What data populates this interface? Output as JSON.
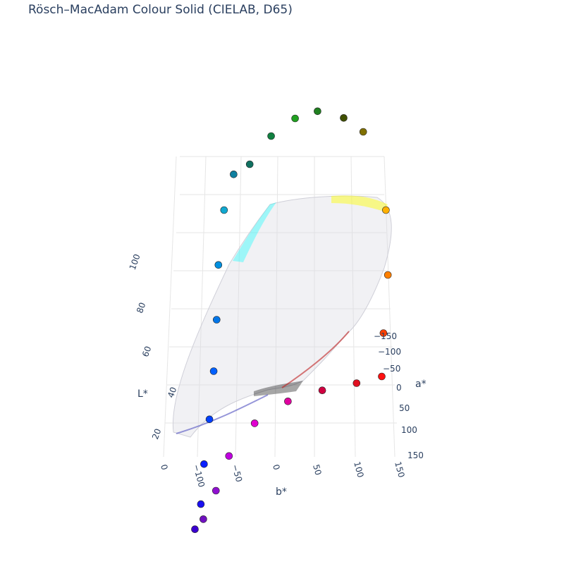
{
  "title": "Rösch–MacAdam Colour Solid (CIELAB, D65)",
  "chart_data": {
    "type": "scatter",
    "title": "Rösch–MacAdam Colour Solid (CIELAB, D65)",
    "axes": {
      "x": {
        "label": "b*",
        "ticks": [
          "0",
          "−100",
          "−50",
          "0",
          "50",
          "100",
          "150"
        ]
      },
      "y": {
        "label": "a*",
        "ticks": [
          "−150",
          "−100",
          "−50",
          "0",
          "50",
          "100",
          "150"
        ]
      },
      "z": {
        "label": "L*",
        "ticks": [
          "20",
          "40",
          "60",
          "80",
          "100"
        ]
      }
    },
    "grid": true,
    "series": [
      {
        "role": "boundary-surface",
        "marker": "small dots",
        "colors": [
          "#00ffff",
          "#ffff00",
          "#ff0000",
          "#0000ff",
          "#ff00ff",
          "#00a000",
          "#000000"
        ]
      },
      {
        "role": "spectral-boundary",
        "marker": "large circles",
        "points": [
          {
            "L": 17,
            "a": 70,
            "b": -125,
            "color": "#3a00d0"
          },
          {
            "L": 25,
            "a": 78,
            "b": -120,
            "color": "#1a10f0"
          },
          {
            "L": 35,
            "a": 75,
            "b": -115,
            "color": "#0a20ff"
          },
          {
            "L": 45,
            "a": 65,
            "b": -105,
            "color": "#0040ff"
          },
          {
            "L": 55,
            "a": 50,
            "b": -95,
            "color": "#0060ff"
          },
          {
            "L": 65,
            "a": 30,
            "b": -85,
            "color": "#0075e8"
          },
          {
            "L": 75,
            "a": 5,
            "b": -75,
            "color": "#0090e0"
          },
          {
            "L": 85,
            "a": -20,
            "b": -60,
            "color": "#10a8d0"
          },
          {
            "L": 90,
            "a": -45,
            "b": -40,
            "color": "#1080a0"
          },
          {
            "L": 90,
            "a": -60,
            "b": -15,
            "color": "#107060"
          },
          {
            "L": 93,
            "a": -85,
            "b": 20,
            "color": "#108040"
          },
          {
            "L": 95,
            "a": -100,
            "b": 55,
            "color": "#20a020"
          },
          {
            "L": 96,
            "a": -105,
            "b": 85,
            "color": "#208020"
          },
          {
            "L": 96,
            "a": -95,
            "b": 115,
            "color": "#405000"
          },
          {
            "L": 95,
            "a": -80,
            "b": 135,
            "color": "#807000"
          },
          {
            "L": 85,
            "a": -20,
            "b": 145,
            "color": "#ffb000"
          },
          {
            "L": 75,
            "a": 20,
            "b": 135,
            "color": "#ff8000"
          },
          {
            "L": 65,
            "a": 50,
            "b": 120,
            "color": "#ff4000"
          },
          {
            "L": 58,
            "a": 75,
            "b": 110,
            "color": "#ff1010"
          },
          {
            "L": 58,
            "a": 85,
            "b": 75,
            "color": "#e01020"
          },
          {
            "L": 57,
            "a": 90,
            "b": 30,
            "color": "#d00040"
          },
          {
            "L": 55,
            "a": 95,
            "b": -15,
            "color": "#e000a0"
          },
          {
            "L": 48,
            "a": 88,
            "b": -55,
            "color": "#e000d0"
          },
          {
            "L": 38,
            "a": 80,
            "b": -85,
            "color": "#c000e0"
          },
          {
            "L": 28,
            "a": 75,
            "b": -100,
            "color": "#9010d0"
          },
          {
            "L": 20,
            "a": 72,
            "b": -115,
            "color": "#7010c0"
          }
        ]
      }
    ]
  }
}
